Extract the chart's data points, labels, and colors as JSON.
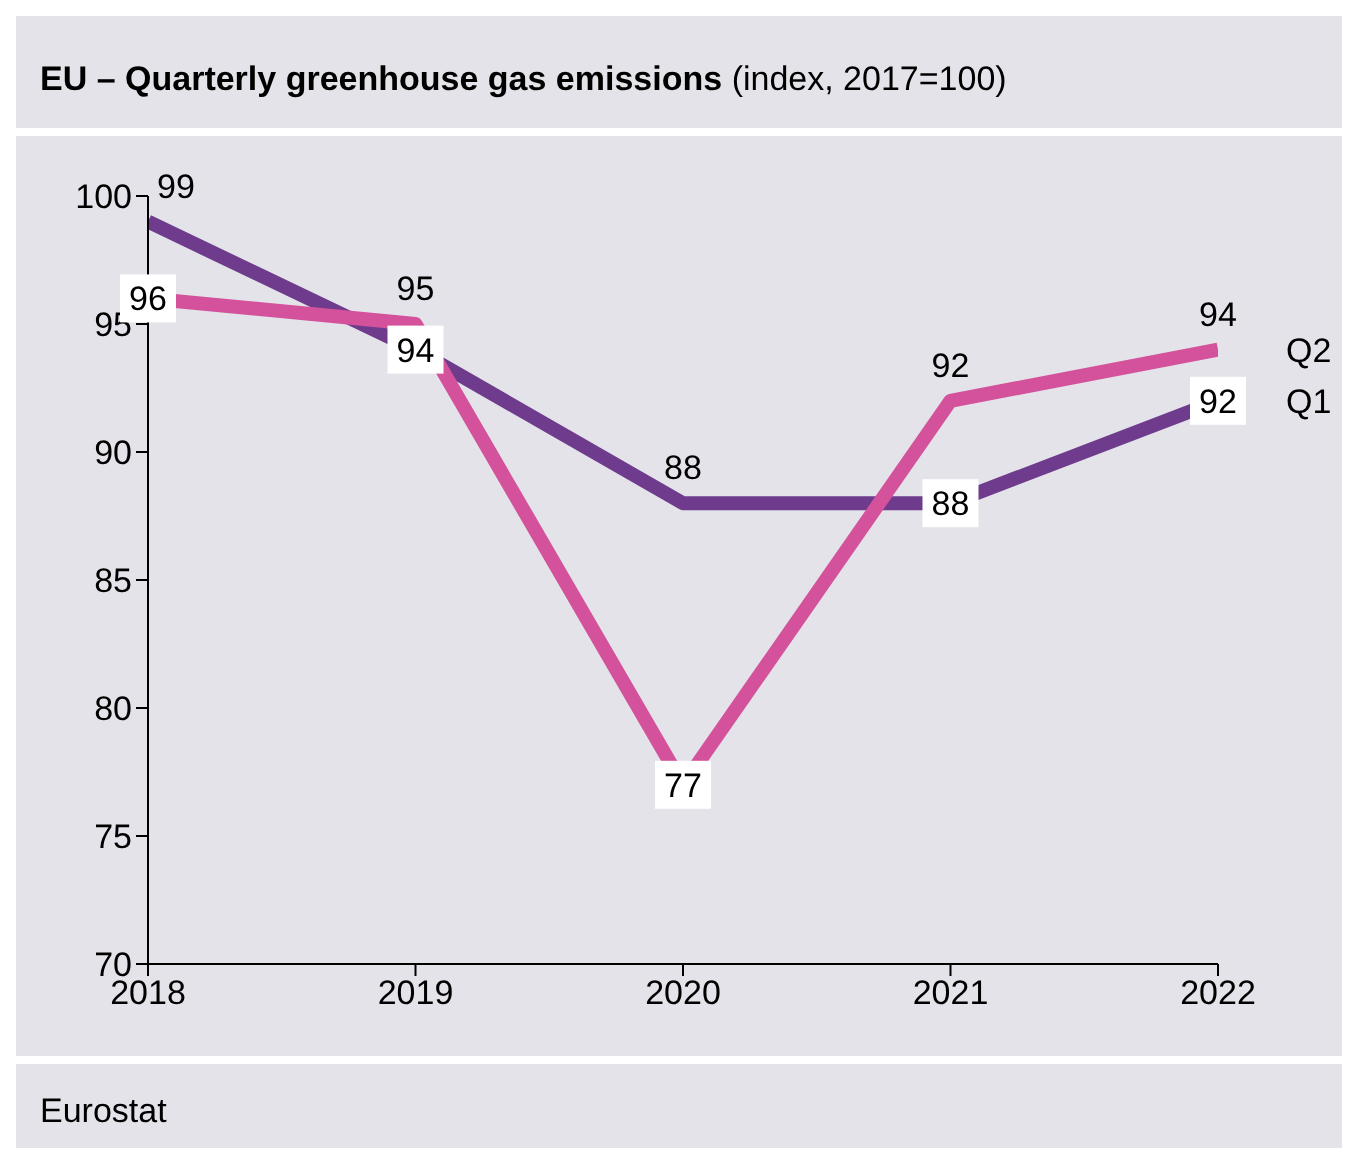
{
  "chart_data": {
    "type": "line",
    "title": "EU – Quarterly greenhouse gas emissions",
    "subtitle": "(index, 2017=100)",
    "x": [
      2018,
      2019,
      2020,
      2021,
      2022
    ],
    "xlim": [
      2018,
      2022
    ],
    "xticks": [
      2018,
      2019,
      2020,
      2021,
      2022
    ],
    "ylim": [
      70,
      100
    ],
    "yticks": [
      70,
      75,
      80,
      85,
      90,
      95,
      100
    ],
    "grid": false,
    "legend": false,
    "line_style": "solid",
    "data_labels": true,
    "series": [
      {
        "name": "Q1",
        "color": "#6f3b8c",
        "values": [
          99,
          94,
          88,
          88,
          92
        ]
      },
      {
        "name": "Q2",
        "color": "#d4529b",
        "values": [
          96,
          95,
          77,
          92,
          94
        ]
      }
    ],
    "annotations": [
      "Eurostat"
    ]
  }
}
